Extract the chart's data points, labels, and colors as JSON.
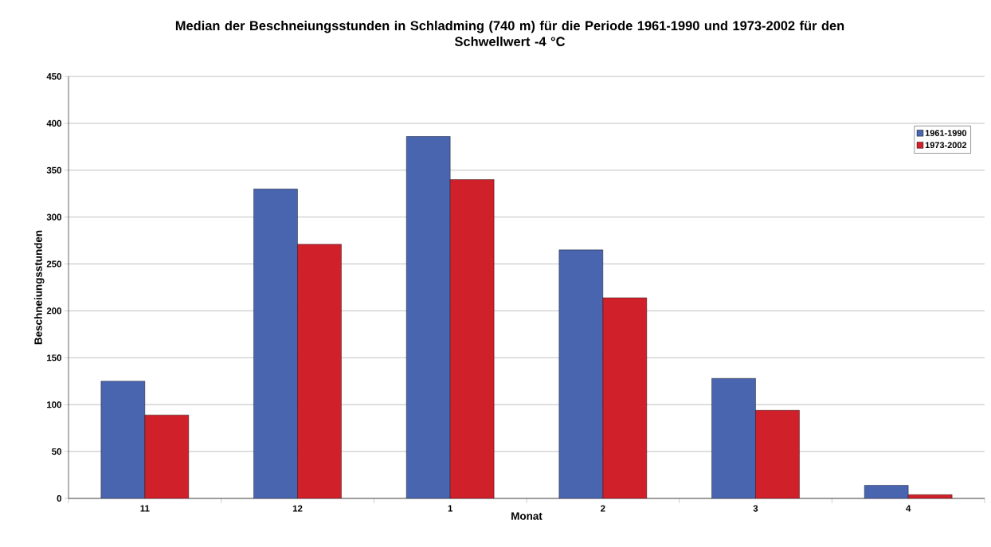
{
  "chart_data": {
    "type": "bar",
    "title": "Median der Beschneiungsstunden in Schladming (740 m) für die Periode 1961-1990 und 1973-2002 für den Schwellwert -4 °C",
    "xlabel": "Monat",
    "ylabel": "Beschneiungsstunden",
    "categories": [
      "11",
      "12",
      "1",
      "2",
      "3",
      "4"
    ],
    "series": [
      {
        "name": "1961-1990",
        "color": "#4a65b0",
        "values": [
          125,
          330,
          386,
          265,
          128,
          14
        ]
      },
      {
        "name": "1973-2002",
        "color": "#d0202a",
        "values": [
          89,
          271,
          340,
          214,
          94,
          4
        ]
      }
    ],
    "ylim": [
      0,
      450
    ],
    "yticks": [
      0,
      50,
      100,
      150,
      200,
      250,
      300,
      350,
      400,
      450
    ],
    "grid": "y",
    "legend": "top right"
  }
}
